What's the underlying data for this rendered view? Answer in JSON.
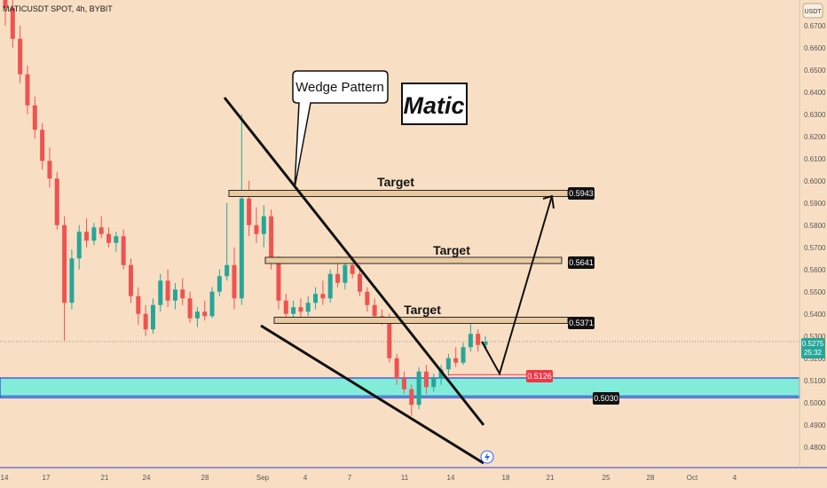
{
  "header": {
    "symbol_line": "MATICUSDT SPOT, 4h, BYBIT",
    "currency_button": "USDT"
  },
  "annotations": {
    "wedge_label": "Wedge Pattern",
    "title_box": "Matic",
    "target_labels": [
      "Target",
      "Target",
      "Target"
    ]
  },
  "price_tags": {
    "target_1": "0.5943",
    "target_2": "0.5641",
    "target_3": "0.5371",
    "stop": "0.5126",
    "support": "0.5030",
    "last_price": "0.5275",
    "countdown": "25:32"
  },
  "colors": {
    "background": "#f8dfc4",
    "up_candle": "#26a69a",
    "down_candle": "#ef5350",
    "support_zone": "#83ecd9",
    "support_line": "#2f3bd8",
    "stop_tag": "#f23645",
    "target_zone": "#e9c99e"
  },
  "chart_data": {
    "type": "candlestick",
    "symbol": "MATICUSDT SPOT",
    "interval": "4h",
    "exchange": "BYBIT",
    "y_axis": {
      "ylim": [
        0.4755,
        0.6755
      ],
      "ticks": [
        "0.6700",
        "0.6600",
        "0.6500",
        "0.6400",
        "0.6300",
        "0.6200",
        "0.6100",
        "0.6000",
        "0.5900",
        "0.5800",
        "0.5700",
        "0.5600",
        "0.5500",
        "0.5400",
        "0.5300",
        "0.5200",
        "0.5100",
        "0.5000",
        "0.4900",
        "0.4800"
      ]
    },
    "x_axis": {
      "ticks": [
        "14",
        "17",
        "21",
        "24",
        "28",
        "Sep",
        "4",
        "7",
        "11",
        "14",
        "18",
        "21",
        "25",
        "28",
        "Oct",
        "4"
      ]
    },
    "levels": {
      "targets": [
        0.5943,
        0.5641,
        0.5371
      ],
      "stop": 0.5126,
      "support": 0.503,
      "support_zone": [
        0.5022,
        0.5111
      ],
      "last_price": 0.5275
    },
    "candles": [
      {
        "o": 0.692,
        "h": 0.695,
        "l": 0.67,
        "c": 0.678
      },
      {
        "o": 0.678,
        "h": 0.682,
        "l": 0.66,
        "c": 0.664
      },
      {
        "o": 0.664,
        "h": 0.67,
        "l": 0.644,
        "c": 0.648
      },
      {
        "o": 0.648,
        "h": 0.652,
        "l": 0.63,
        "c": 0.634
      },
      {
        "o": 0.634,
        "h": 0.638,
        "l": 0.619,
        "c": 0.623
      },
      {
        "o": 0.623,
        "h": 0.626,
        "l": 0.605,
        "c": 0.609
      },
      {
        "o": 0.609,
        "h": 0.615,
        "l": 0.597,
        "c": 0.601
      },
      {
        "o": 0.601,
        "h": 0.604,
        "l": 0.578,
        "c": 0.58
      },
      {
        "o": 0.58,
        "h": 0.584,
        "l": 0.528,
        "c": 0.545
      },
      {
        "o": 0.545,
        "h": 0.569,
        "l": 0.542,
        "c": 0.565
      },
      {
        "o": 0.565,
        "h": 0.58,
        "l": 0.56,
        "c": 0.577
      },
      {
        "o": 0.577,
        "h": 0.583,
        "l": 0.57,
        "c": 0.573
      },
      {
        "o": 0.573,
        "h": 0.581,
        "l": 0.571,
        "c": 0.579
      },
      {
        "o": 0.579,
        "h": 0.584,
        "l": 0.574,
        "c": 0.576
      },
      {
        "o": 0.576,
        "h": 0.579,
        "l": 0.57,
        "c": 0.572
      },
      {
        "o": 0.572,
        "h": 0.577,
        "l": 0.568,
        "c": 0.575
      },
      {
        "o": 0.575,
        "h": 0.578,
        "l": 0.56,
        "c": 0.562
      },
      {
        "o": 0.562,
        "h": 0.565,
        "l": 0.545,
        "c": 0.548
      },
      {
        "o": 0.548,
        "h": 0.552,
        "l": 0.535,
        "c": 0.54
      },
      {
        "o": 0.54,
        "h": 0.544,
        "l": 0.53,
        "c": 0.533
      },
      {
        "o": 0.533,
        "h": 0.547,
        "l": 0.531,
        "c": 0.544
      },
      {
        "o": 0.544,
        "h": 0.558,
        "l": 0.541,
        "c": 0.555
      },
      {
        "o": 0.555,
        "h": 0.56,
        "l": 0.543,
        "c": 0.546
      },
      {
        "o": 0.546,
        "h": 0.554,
        "l": 0.542,
        "c": 0.551
      },
      {
        "o": 0.551,
        "h": 0.556,
        "l": 0.544,
        "c": 0.547
      },
      {
        "o": 0.547,
        "h": 0.55,
        "l": 0.536,
        "c": 0.538
      },
      {
        "o": 0.538,
        "h": 0.543,
        "l": 0.534,
        "c": 0.541
      },
      {
        "o": 0.541,
        "h": 0.546,
        "l": 0.537,
        "c": 0.539
      },
      {
        "o": 0.539,
        "h": 0.552,
        "l": 0.538,
        "c": 0.55
      },
      {
        "o": 0.55,
        "h": 0.56,
        "l": 0.548,
        "c": 0.557
      },
      {
        "o": 0.557,
        "h": 0.59,
        "l": 0.555,
        "c": 0.562
      },
      {
        "o": 0.562,
        "h": 0.57,
        "l": 0.542,
        "c": 0.547
      },
      {
        "o": 0.547,
        "h": 0.63,
        "l": 0.544,
        "c": 0.592
      },
      {
        "o": 0.592,
        "h": 0.6,
        "l": 0.575,
        "c": 0.58
      },
      {
        "o": 0.58,
        "h": 0.588,
        "l": 0.572,
        "c": 0.576
      },
      {
        "o": 0.576,
        "h": 0.589,
        "l": 0.57,
        "c": 0.584
      },
      {
        "o": 0.584,
        "h": 0.587,
        "l": 0.56,
        "c": 0.564
      },
      {
        "o": 0.564,
        "h": 0.566,
        "l": 0.542,
        "c": 0.546
      },
      {
        "o": 0.546,
        "h": 0.549,
        "l": 0.537,
        "c": 0.54
      },
      {
        "o": 0.54,
        "h": 0.546,
        "l": 0.536,
        "c": 0.543
      },
      {
        "o": 0.543,
        "h": 0.547,
        "l": 0.538,
        "c": 0.541
      },
      {
        "o": 0.541,
        "h": 0.548,
        "l": 0.539,
        "c": 0.545
      },
      {
        "o": 0.545,
        "h": 0.552,
        "l": 0.542,
        "c": 0.549
      },
      {
        "o": 0.549,
        "h": 0.555,
        "l": 0.544,
        "c": 0.547
      },
      {
        "o": 0.547,
        "h": 0.56,
        "l": 0.545,
        "c": 0.558
      },
      {
        "o": 0.558,
        "h": 0.566,
        "l": 0.552,
        "c": 0.554
      },
      {
        "o": 0.554,
        "h": 0.565,
        "l": 0.551,
        "c": 0.562
      },
      {
        "o": 0.562,
        "h": 0.566,
        "l": 0.556,
        "c": 0.558
      },
      {
        "o": 0.558,
        "h": 0.562,
        "l": 0.548,
        "c": 0.55
      },
      {
        "o": 0.55,
        "h": 0.552,
        "l": 0.541,
        "c": 0.544
      },
      {
        "o": 0.544,
        "h": 0.547,
        "l": 0.537,
        "c": 0.539
      },
      {
        "o": 0.539,
        "h": 0.542,
        "l": 0.535,
        "c": 0.537
      },
      {
        "o": 0.537,
        "h": 0.54,
        "l": 0.518,
        "c": 0.52
      },
      {
        "o": 0.52,
        "h": 0.522,
        "l": 0.508,
        "c": 0.511
      },
      {
        "o": 0.511,
        "h": 0.514,
        "l": 0.504,
        "c": 0.506
      },
      {
        "o": 0.506,
        "h": 0.508,
        "l": 0.494,
        "c": 0.499
      },
      {
        "o": 0.499,
        "h": 0.516,
        "l": 0.497,
        "c": 0.514
      },
      {
        "o": 0.514,
        "h": 0.517,
        "l": 0.504,
        "c": 0.507
      },
      {
        "o": 0.507,
        "h": 0.513,
        "l": 0.505,
        "c": 0.511
      },
      {
        "o": 0.511,
        "h": 0.517,
        "l": 0.508,
        "c": 0.515
      },
      {
        "o": 0.515,
        "h": 0.522,
        "l": 0.512,
        "c": 0.52
      },
      {
        "o": 0.52,
        "h": 0.525,
        "l": 0.516,
        "c": 0.518
      },
      {
        "o": 0.518,
        "h": 0.527,
        "l": 0.517,
        "c": 0.525
      },
      {
        "o": 0.525,
        "h": 0.536,
        "l": 0.523,
        "c": 0.531
      },
      {
        "o": 0.531,
        "h": 0.533,
        "l": 0.523,
        "c": 0.526
      },
      {
        "o": 0.526,
        "h": 0.53,
        "l": 0.524,
        "c": 0.5275
      }
    ]
  }
}
